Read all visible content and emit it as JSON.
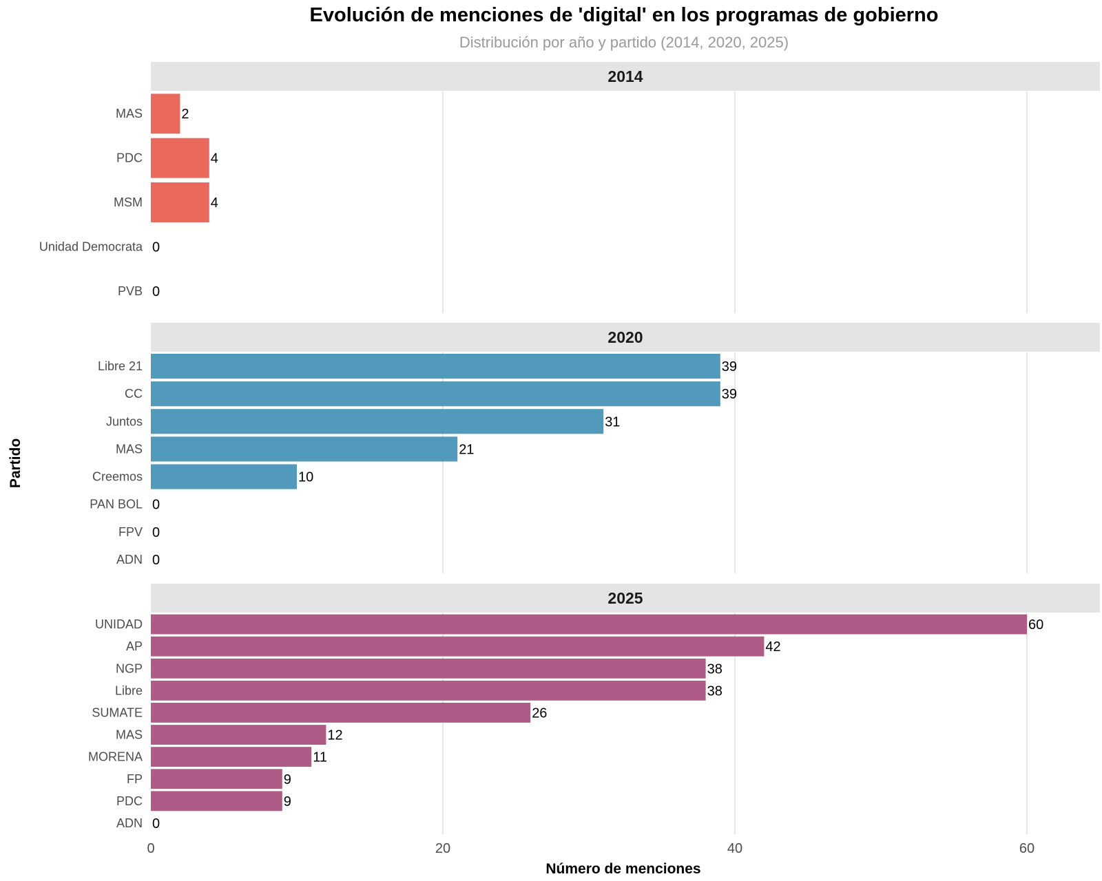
{
  "chart_data": {
    "type": "bar",
    "orientation": "horizontal",
    "title": "Evolución de menciones de 'digital' en los programas de gobierno",
    "subtitle": "Distribución por año y partido (2014, 2020, 2025)",
    "xlabel": "Número de menciones",
    "ylabel": "Partido",
    "xlim": [
      0,
      65
    ],
    "xticks": [
      0,
      20,
      40,
      60
    ],
    "grid": true,
    "panels": [
      {
        "name": "2014",
        "color": "#E8594B",
        "categories": [
          "MAS",
          "PDC",
          "MSM",
          "Unidad Democrata",
          "PVB"
        ],
        "values": [
          2,
          4,
          4,
          0,
          0
        ]
      },
      {
        "name": "2020",
        "color": "#3E8FB5",
        "categories": [
          "Libre 21",
          "CC",
          "Juntos",
          "MAS",
          "Creemos",
          "PAN BOL",
          "FPV",
          "ADN"
        ],
        "values": [
          39,
          39,
          31,
          21,
          10,
          0,
          0,
          0
        ]
      },
      {
        "name": "2025",
        "color": "#A6497B",
        "categories": [
          "UNIDAD",
          "AP",
          "NGP",
          "Libre",
          "SUMATE",
          "MAS",
          "MORENA",
          "FP",
          "PDC",
          "ADN"
        ],
        "values": [
          60,
          42,
          38,
          38,
          26,
          12,
          11,
          9,
          9,
          0
        ]
      }
    ]
  }
}
